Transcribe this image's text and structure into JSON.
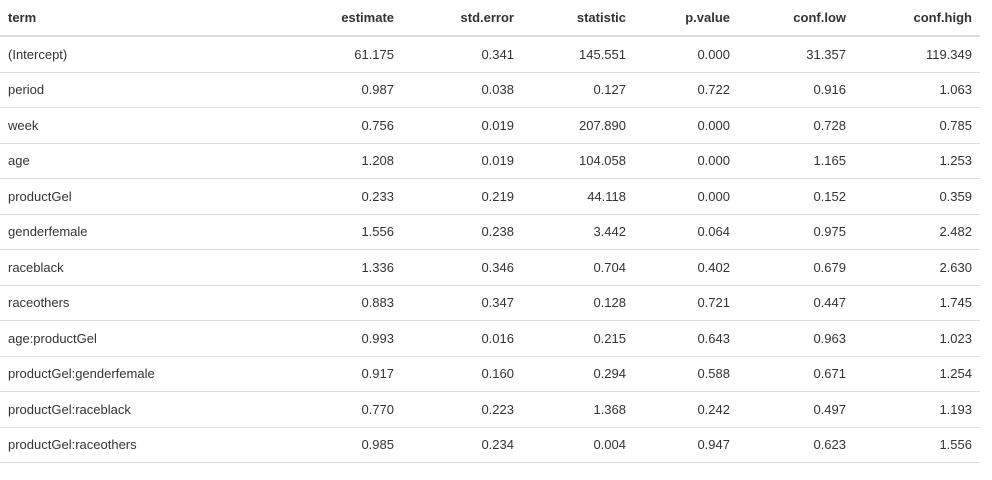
{
  "table": {
    "columns": [
      "term",
      "estimate",
      "std.error",
      "statistic",
      "p.value",
      "conf.low",
      "conf.high"
    ],
    "rows": [
      [
        "(Intercept)",
        "61.175",
        "0.341",
        "145.551",
        "0.000",
        "31.357",
        "119.349"
      ],
      [
        "period",
        "0.987",
        "0.038",
        "0.127",
        "0.722",
        "0.916",
        "1.063"
      ],
      [
        "week",
        "0.756",
        "0.019",
        "207.890",
        "0.000",
        "0.728",
        "0.785"
      ],
      [
        "age",
        "1.208",
        "0.019",
        "104.058",
        "0.000",
        "1.165",
        "1.253"
      ],
      [
        "productGel",
        "0.233",
        "0.219",
        "44.118",
        "0.000",
        "0.152",
        "0.359"
      ],
      [
        "genderfemale",
        "1.556",
        "0.238",
        "3.442",
        "0.064",
        "0.975",
        "2.482"
      ],
      [
        "raceblack",
        "1.336",
        "0.346",
        "0.704",
        "0.402",
        "0.679",
        "2.630"
      ],
      [
        "raceothers",
        "0.883",
        "0.347",
        "0.128",
        "0.721",
        "0.447",
        "1.745"
      ],
      [
        "age:productGel",
        "0.993",
        "0.016",
        "0.215",
        "0.643",
        "0.963",
        "1.023"
      ],
      [
        "productGel:genderfemale",
        "0.917",
        "0.160",
        "0.294",
        "0.588",
        "0.671",
        "1.254"
      ],
      [
        "productGel:raceblack",
        "0.770",
        "0.223",
        "1.368",
        "0.242",
        "0.497",
        "1.193"
      ],
      [
        "productGel:raceothers",
        "0.985",
        "0.234",
        "0.004",
        "0.947",
        "0.623",
        "1.556"
      ]
    ]
  }
}
